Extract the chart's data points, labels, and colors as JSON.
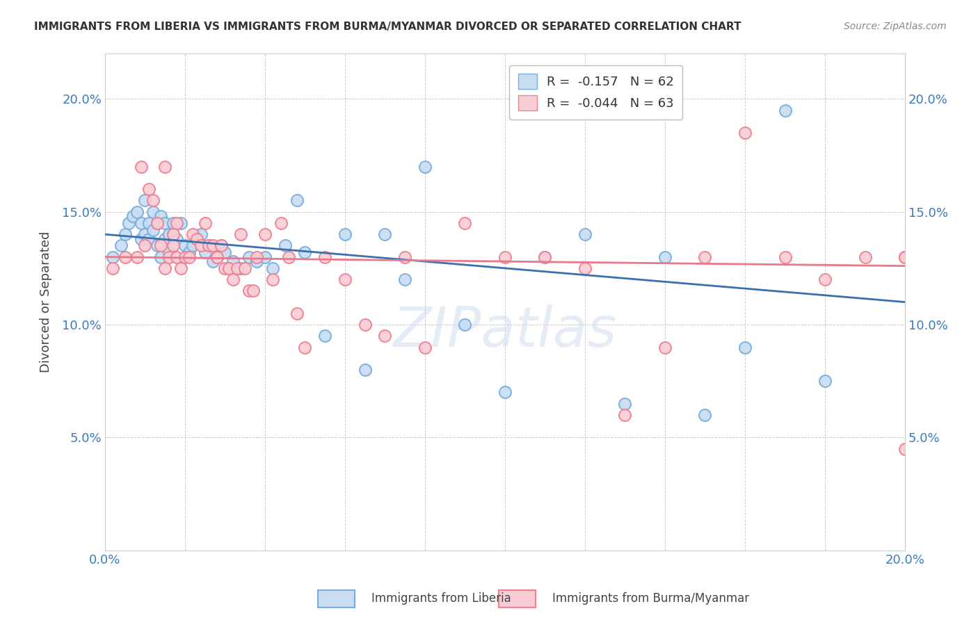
{
  "title": "IMMIGRANTS FROM LIBERIA VS IMMIGRANTS FROM BURMA/MYANMAR DIVORCED OR SEPARATED CORRELATION CHART",
  "source": "Source: ZipAtlas.com",
  "ylabel": "Divorced or Separated",
  "xlim": [
    0.0,
    0.2
  ],
  "ylim": [
    0.0,
    0.22
  ],
  "blue_color_face": "#c8ddf2",
  "blue_color_edge": "#7aaddd",
  "pink_color_face": "#f9cdd5",
  "pink_color_edge": "#f08090",
  "blue_line_color": "#3a6fb0",
  "pink_line_color": "#e8788a",
  "watermark": "ZIPatlas",
  "blue_R": -0.157,
  "blue_N": 62,
  "pink_R": -0.044,
  "pink_N": 63,
  "blue_line_start": 0.14,
  "blue_line_end": 0.11,
  "pink_line_start": 0.13,
  "pink_line_end": 0.126,
  "blue_scatter_x": [
    0.002,
    0.004,
    0.005,
    0.006,
    0.007,
    0.008,
    0.009,
    0.009,
    0.01,
    0.01,
    0.011,
    0.011,
    0.012,
    0.012,
    0.013,
    0.013,
    0.014,
    0.014,
    0.015,
    0.015,
    0.016,
    0.016,
    0.017,
    0.017,
    0.018,
    0.019,
    0.02,
    0.021,
    0.022,
    0.023,
    0.024,
    0.025,
    0.026,
    0.027,
    0.028,
    0.029,
    0.03,
    0.032,
    0.034,
    0.036,
    0.038,
    0.04,
    0.042,
    0.045,
    0.048,
    0.05,
    0.055,
    0.06,
    0.065,
    0.07,
    0.075,
    0.08,
    0.09,
    0.1,
    0.11,
    0.12,
    0.13,
    0.14,
    0.15,
    0.16,
    0.17,
    0.18
  ],
  "blue_scatter_y": [
    0.13,
    0.135,
    0.14,
    0.145,
    0.148,
    0.15,
    0.145,
    0.138,
    0.155,
    0.14,
    0.145,
    0.138,
    0.15,
    0.142,
    0.145,
    0.135,
    0.148,
    0.13,
    0.145,
    0.138,
    0.14,
    0.132,
    0.145,
    0.14,
    0.138,
    0.145,
    0.135,
    0.132,
    0.135,
    0.138,
    0.14,
    0.132,
    0.135,
    0.128,
    0.13,
    0.135,
    0.132,
    0.128,
    0.125,
    0.13,
    0.128,
    0.13,
    0.125,
    0.135,
    0.155,
    0.132,
    0.095,
    0.14,
    0.08,
    0.14,
    0.12,
    0.17,
    0.1,
    0.07,
    0.13,
    0.14,
    0.065,
    0.13,
    0.06,
    0.09,
    0.195,
    0.075
  ],
  "pink_scatter_x": [
    0.002,
    0.005,
    0.008,
    0.009,
    0.01,
    0.011,
    0.012,
    0.013,
    0.014,
    0.015,
    0.015,
    0.016,
    0.017,
    0.017,
    0.018,
    0.018,
    0.019,
    0.02,
    0.021,
    0.022,
    0.023,
    0.024,
    0.025,
    0.026,
    0.027,
    0.028,
    0.029,
    0.03,
    0.031,
    0.032,
    0.033,
    0.034,
    0.035,
    0.036,
    0.037,
    0.038,
    0.04,
    0.042,
    0.044,
    0.046,
    0.048,
    0.05,
    0.055,
    0.06,
    0.065,
    0.07,
    0.075,
    0.08,
    0.09,
    0.1,
    0.11,
    0.12,
    0.13,
    0.14,
    0.15,
    0.16,
    0.17,
    0.18,
    0.19,
    0.2,
    0.2,
    0.2,
    0.2
  ],
  "pink_scatter_y": [
    0.125,
    0.13,
    0.13,
    0.17,
    0.135,
    0.16,
    0.155,
    0.145,
    0.135,
    0.125,
    0.17,
    0.13,
    0.14,
    0.135,
    0.145,
    0.13,
    0.125,
    0.13,
    0.13,
    0.14,
    0.138,
    0.135,
    0.145,
    0.135,
    0.135,
    0.13,
    0.135,
    0.125,
    0.125,
    0.12,
    0.125,
    0.14,
    0.125,
    0.115,
    0.115,
    0.13,
    0.14,
    0.12,
    0.145,
    0.13,
    0.105,
    0.09,
    0.13,
    0.12,
    0.1,
    0.095,
    0.13,
    0.09,
    0.145,
    0.13,
    0.13,
    0.125,
    0.06,
    0.09,
    0.13,
    0.185,
    0.13,
    0.12,
    0.13,
    0.13,
    0.13,
    0.13,
    0.045
  ]
}
